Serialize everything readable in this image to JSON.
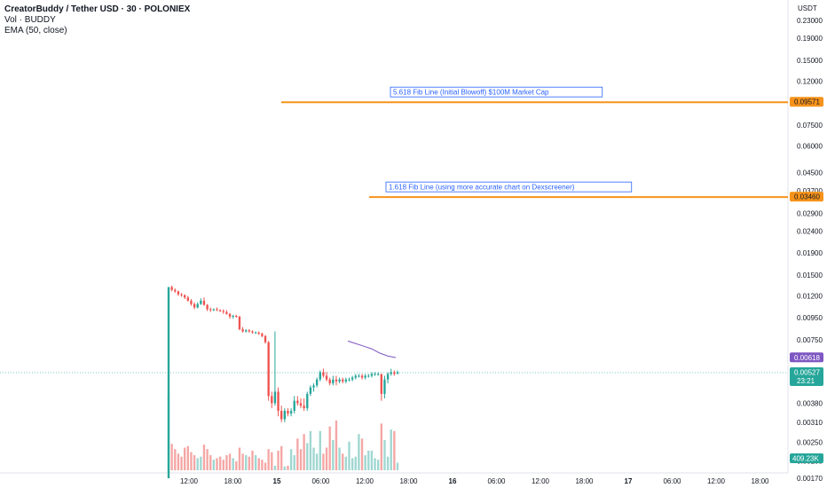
{
  "legend": {
    "title": "CreatorBuddy / Tether USD · 30 · POLONIEX",
    "volume": "Vol · BUDDY",
    "ema": "EMA (50, close)"
  },
  "colors": {
    "up": "#26a69a",
    "down": "#ef5350",
    "vol_up": "#9fd7d1",
    "vol_down": "#f4a7a5",
    "fib_line": "#f7931a",
    "ema": "#7e57c2",
    "annotation_text": "#2962ff"
  },
  "chart_data": {
    "type": "candlestick",
    "y_axis": {
      "unit": "USDT",
      "scale": "log",
      "ticks": [
        "0.23000",
        "0.19000",
        "0.15000",
        "0.12000",
        "0.07500",
        "0.06000",
        "0.04500",
        "0.03700",
        "0.02900",
        "0.02400",
        "0.01900",
        "0.01500",
        "0.01200",
        "0.00950",
        "0.00750",
        "0.00380",
        "0.00310",
        "0.00250",
        "0.00205",
        "0.00170"
      ]
    },
    "x_axis": {
      "ticks": [
        "12:00",
        "18:00",
        "15",
        "06:00",
        "12:00",
        "18:00",
        "16",
        "06:00",
        "12:00",
        "18:00",
        "17",
        "06:00",
        "12:00",
        "18:00"
      ]
    },
    "price_badges": [
      {
        "label": "0.09571",
        "value": 0.09571,
        "type": "fib"
      },
      {
        "label": "0.03460",
        "value": 0.0346,
        "type": "fib"
      },
      {
        "label": "0.00618",
        "value": 0.00618,
        "type": "ema"
      },
      {
        "label": "0.00527",
        "value": 0.00527,
        "type": "last",
        "sub": "23:21"
      }
    ],
    "volume_badge": "409.23K",
    "annotations": [
      {
        "text": "5.618 Fib Line (Initial Blowoff) $100M Market Cap",
        "value": 0.09571
      },
      {
        "text": "1.618 Fib Line (using more accurate chart on Dexscreener)",
        "value": 0.0346
      }
    ],
    "ema": {
      "period": 50,
      "values": [
        0.0074,
        0.0072,
        0.007,
        0.0068,
        0.0065,
        0.0063,
        0.0062
      ]
    },
    "candles": [
      [
        0.0017,
        0.0132,
        0.0017,
        0.0132,
        1.0
      ],
      [
        0.0132,
        0.0134,
        0.0126,
        0.0128,
        0.35
      ],
      [
        0.0128,
        0.013,
        0.0124,
        0.0126,
        0.28
      ],
      [
        0.0126,
        0.0127,
        0.012,
        0.0122,
        0.22
      ],
      [
        0.0122,
        0.0124,
        0.0119,
        0.0121,
        0.18
      ],
      [
        0.0121,
        0.0122,
        0.0116,
        0.0118,
        0.3
      ],
      [
        0.0118,
        0.012,
        0.0113,
        0.0114,
        0.32
      ],
      [
        0.0114,
        0.0116,
        0.0108,
        0.011,
        0.24
      ],
      [
        0.011,
        0.0112,
        0.0104,
        0.0106,
        0.2
      ],
      [
        0.0106,
        0.0112,
        0.0105,
        0.011,
        0.16
      ],
      [
        0.011,
        0.0117,
        0.0109,
        0.0114,
        0.18
      ],
      [
        0.0114,
        0.0118,
        0.0108,
        0.0109,
        0.34
      ],
      [
        0.0109,
        0.011,
        0.0102,
        0.0104,
        0.28
      ],
      [
        0.0104,
        0.0106,
        0.0101,
        0.0103,
        0.2
      ],
      [
        0.0103,
        0.0105,
        0.0102,
        0.0104,
        0.14
      ],
      [
        0.0104,
        0.0106,
        0.0102,
        0.0103,
        0.16
      ],
      [
        0.0103,
        0.0104,
        0.0101,
        0.0102,
        0.18
      ],
      [
        0.0102,
        0.0104,
        0.0099,
        0.0101,
        0.14
      ],
      [
        0.0101,
        0.0103,
        0.0098,
        0.0099,
        0.2
      ],
      [
        0.0099,
        0.01,
        0.0094,
        0.0096,
        0.22
      ],
      [
        0.0096,
        0.0098,
        0.0094,
        0.0097,
        0.16
      ],
      [
        0.0097,
        0.0098,
        0.0095,
        0.0096,
        0.12
      ],
      [
        0.0096,
        0.0097,
        0.0083,
        0.0084,
        0.3
      ],
      [
        0.0084,
        0.0086,
        0.0081,
        0.0082,
        0.22
      ],
      [
        0.0082,
        0.0084,
        0.0081,
        0.0083,
        0.2
      ],
      [
        0.0083,
        0.0084,
        0.0081,
        0.0082,
        0.18
      ],
      [
        0.0082,
        0.0083,
        0.008,
        0.0081,
        0.26
      ],
      [
        0.0081,
        0.0082,
        0.008,
        0.0081,
        0.2
      ],
      [
        0.0081,
        0.0082,
        0.0079,
        0.008,
        0.16
      ],
      [
        0.008,
        0.0081,
        0.0077,
        0.0078,
        0.14
      ],
      [
        0.0078,
        0.0079,
        0.0072,
        0.0073,
        0.1
      ],
      [
        0.0073,
        0.0074,
        0.0039,
        0.0041,
        0.28
      ],
      [
        0.0041,
        0.0043,
        0.0036,
        0.0038,
        0.24
      ],
      [
        0.0038,
        0.0082,
        0.0037,
        0.0043,
        0.06
      ],
      [
        0.0043,
        0.0045,
        0.0033,
        0.0035,
        0.26
      ],
      [
        0.0035,
        0.0037,
        0.0031,
        0.0032,
        0.32
      ],
      [
        0.0032,
        0.0036,
        0.0031,
        0.0035,
        0.05
      ],
      [
        0.0035,
        0.0036,
        0.0033,
        0.0034,
        0.06
      ],
      [
        0.0034,
        0.0036,
        0.0033,
        0.0035,
        0.28
      ],
      [
        0.0035,
        0.0041,
        0.0034,
        0.0039,
        0.2
      ],
      [
        0.0039,
        0.0041,
        0.0037,
        0.0038,
        0.42
      ],
      [
        0.0038,
        0.004,
        0.0036,
        0.0037,
        0.28
      ],
      [
        0.0037,
        0.004,
        0.0035,
        0.0036,
        0.48
      ],
      [
        0.0036,
        0.0043,
        0.0035,
        0.0042,
        0.36
      ],
      [
        0.0042,
        0.0046,
        0.0041,
        0.0045,
        0.52
      ],
      [
        0.0045,
        0.0047,
        0.0043,
        0.0046,
        0.3
      ],
      [
        0.0046,
        0.005,
        0.0045,
        0.0049,
        0.22
      ],
      [
        0.0049,
        0.0054,
        0.0048,
        0.0053,
        0.52
      ],
      [
        0.0053,
        0.0055,
        0.005,
        0.0051,
        0.22
      ],
      [
        0.0051,
        0.0053,
        0.0048,
        0.0049,
        0.3
      ],
      [
        0.0049,
        0.005,
        0.0046,
        0.0047,
        0.58
      ],
      [
        0.0047,
        0.0051,
        0.0046,
        0.0049,
        0.4
      ],
      [
        0.0049,
        0.0051,
        0.0046,
        0.0048,
        0.66
      ],
      [
        0.0048,
        0.005,
        0.0047,
        0.0049,
        0.3
      ],
      [
        0.0049,
        0.005,
        0.0047,
        0.0048,
        0.22
      ],
      [
        0.0048,
        0.005,
        0.0047,
        0.0049,
        0.18
      ],
      [
        0.0049,
        0.005,
        0.0048,
        0.0049,
        0.38
      ],
      [
        0.0049,
        0.0051,
        0.0048,
        0.005,
        0.16
      ],
      [
        0.005,
        0.0052,
        0.0049,
        0.0051,
        0.18
      ],
      [
        0.0051,
        0.0052,
        0.005,
        0.0051,
        0.48
      ],
      [
        0.0051,
        0.0052,
        0.0049,
        0.005,
        0.42
      ],
      [
        0.005,
        0.0052,
        0.0049,
        0.0051,
        0.2
      ],
      [
        0.0051,
        0.0052,
        0.005,
        0.0051,
        0.26
      ],
      [
        0.0051,
        0.0053,
        0.005,
        0.0052,
        0.26
      ],
      [
        0.0052,
        0.0053,
        0.0051,
        0.0052,
        0.16
      ],
      [
        0.0052,
        0.0053,
        0.0051,
        0.0052,
        0.14
      ],
      [
        0.0052,
        0.0052,
        0.0039,
        0.0042,
        0.62
      ],
      [
        0.0042,
        0.0051,
        0.004,
        0.0049,
        0.4
      ],
      [
        0.0049,
        0.0053,
        0.0047,
        0.0052,
        0.18
      ],
      [
        0.0052,
        0.0055,
        0.0051,
        0.0053,
        0.54
      ],
      [
        0.0053,
        0.0054,
        0.0051,
        0.0052,
        0.52
      ],
      [
        0.0052,
        0.0054,
        0.0052,
        0.0053,
        0.1
      ]
    ]
  }
}
